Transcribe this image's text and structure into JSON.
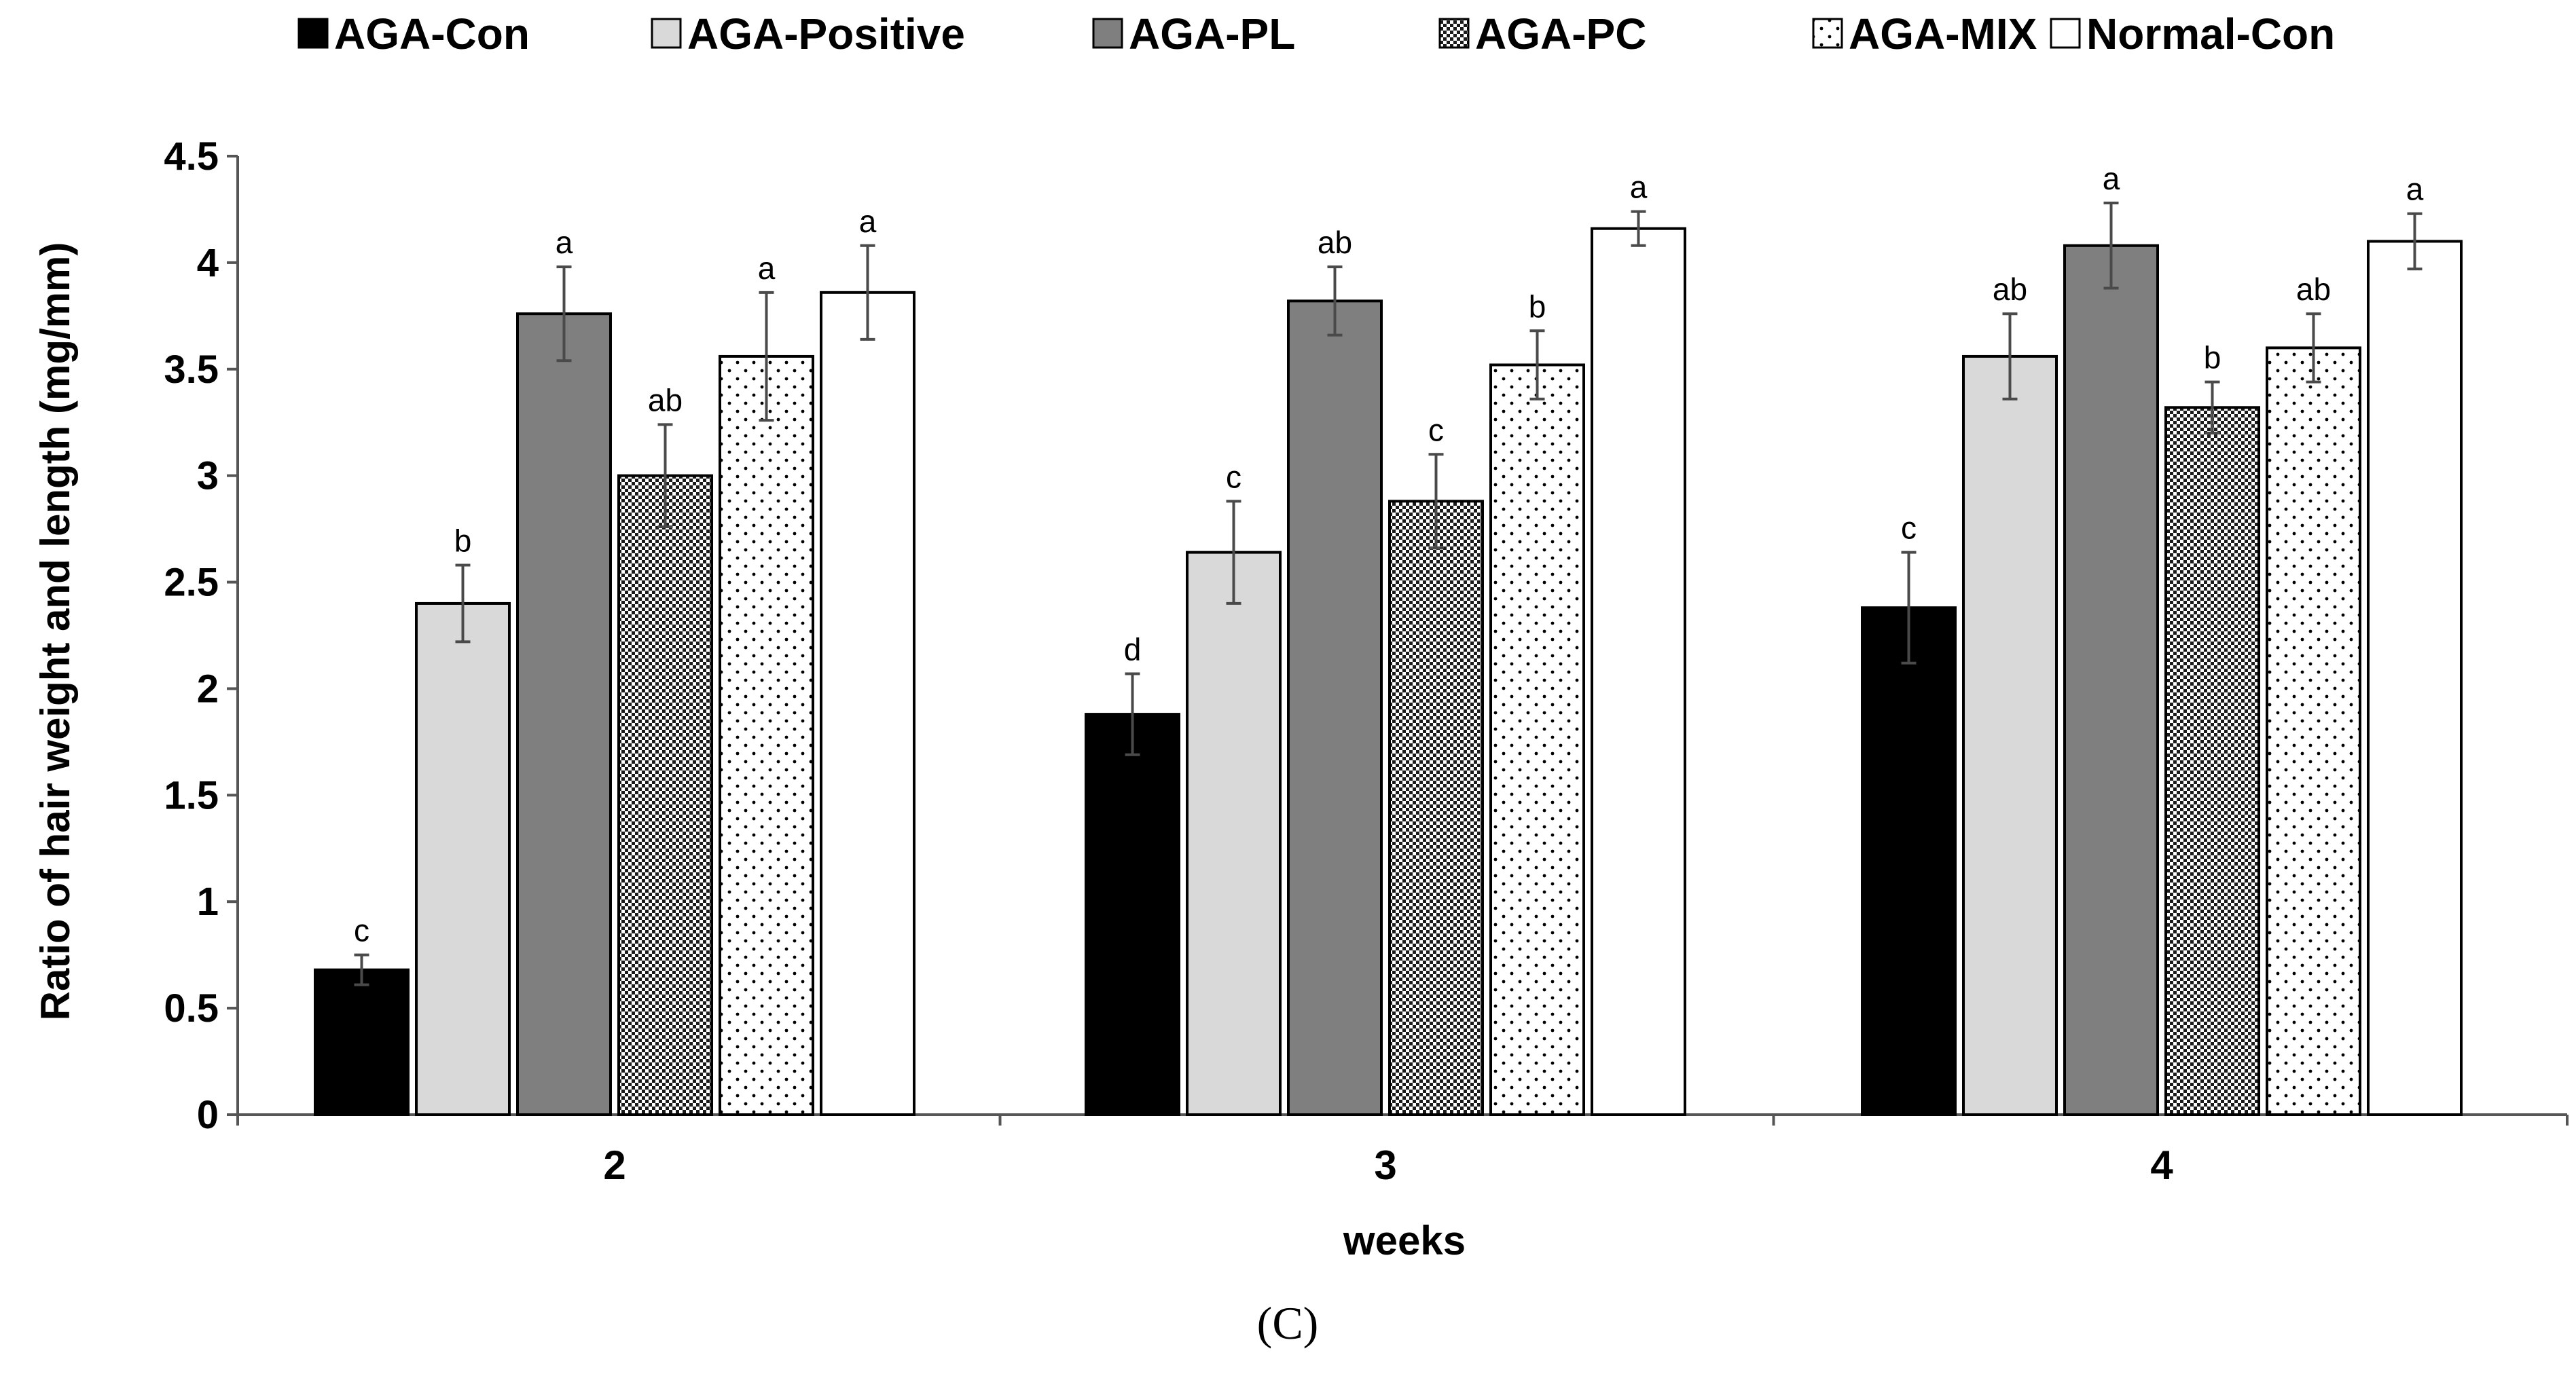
{
  "chart_data": {
    "type": "bar",
    "title": "",
    "panel_label": "(C)",
    "xlabel": "weeks",
    "ylabel": "Ratio of hair weight and length (mg/mm)",
    "ylim": [
      0,
      4.5
    ],
    "yticks": [
      0,
      0.5,
      1,
      1.5,
      2,
      2.5,
      3,
      3.5,
      4,
      4.5
    ],
    "ytick_labels": [
      "0",
      "0.5",
      "1",
      "1.5",
      "2",
      "2.5",
      "3",
      "3.5",
      "4",
      "4.5"
    ],
    "categories": [
      "2",
      "3",
      "4"
    ],
    "legend_position": "top",
    "grid": false,
    "series": [
      {
        "name": "AGA-Con",
        "fill": "solid-black",
        "values": [
          0.68,
          1.88,
          2.38
        ],
        "errors": [
          0.07,
          0.19,
          0.26
        ],
        "significance": [
          "c",
          "d",
          "c"
        ]
      },
      {
        "name": "AGA-Positive",
        "fill": "light-gray",
        "values": [
          2.4,
          2.64,
          3.56
        ],
        "errors": [
          0.18,
          0.24,
          0.2
        ],
        "significance": [
          "b",
          "c",
          "ab"
        ]
      },
      {
        "name": "AGA-PL",
        "fill": "dark-gray",
        "values": [
          3.76,
          3.82,
          4.08
        ],
        "errors": [
          0.22,
          0.16,
          0.2
        ],
        "significance": [
          "a",
          "ab",
          "a"
        ]
      },
      {
        "name": "AGA-PC",
        "fill": "checker",
        "values": [
          3.0,
          2.88,
          3.32
        ],
        "errors": [
          0.24,
          0.22,
          0.12
        ],
        "significance": [
          "ab",
          "c",
          "b"
        ]
      },
      {
        "name": "AGA-MIX",
        "fill": "dots",
        "values": [
          3.56,
          3.52,
          3.6
        ],
        "errors": [
          0.3,
          0.16,
          0.16
        ],
        "significance": [
          "a",
          "b",
          "ab"
        ]
      },
      {
        "name": "Normal-Con",
        "fill": "white",
        "values": [
          3.86,
          4.16,
          4.1
        ],
        "errors": [
          0.22,
          0.08,
          0.13
        ],
        "significance": [
          "a",
          "a",
          "a"
        ]
      }
    ],
    "colors": {
      "black": "#000000",
      "light_gray": "#d9d9d9",
      "dark_gray": "#7f7f7f",
      "axis": "#555555",
      "error_bar": "#4a4a4a"
    }
  }
}
